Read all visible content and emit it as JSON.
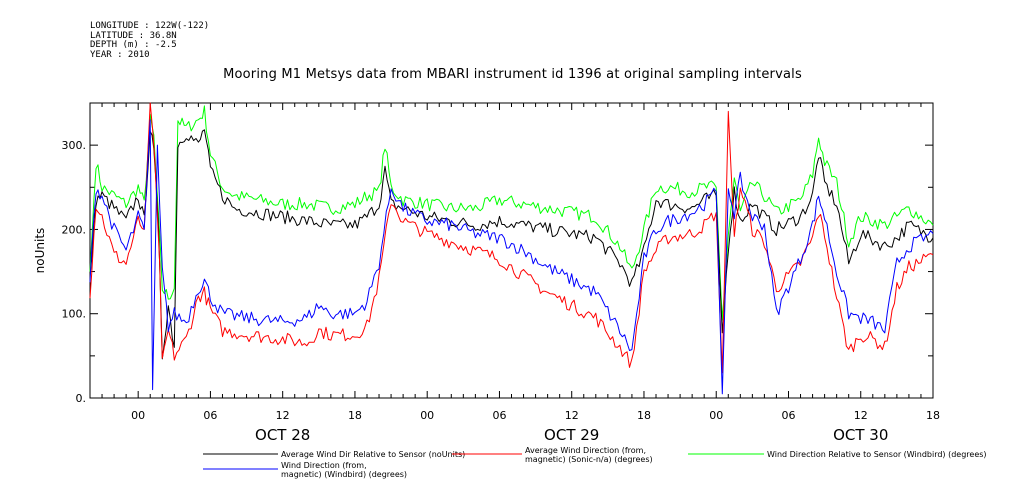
{
  "header": {
    "meta_lines": [
      "LONGITUDE : 122W(-122)",
      "LATITUDE : 36.8N",
      "DEPTH (m) : -2.5",
      "YEAR : 2010"
    ]
  },
  "chart_data": {
    "type": "line",
    "title": "Mooring M1 Metsys data from MBARI instrument id 1396 at original sampling intervals",
    "ylabel": "noUnits",
    "xlabel": "",
    "x_range_hours": [
      -4,
      66
    ],
    "ylim": [
      0,
      350
    ],
    "y_ticks": [
      0,
      100,
      200,
      300
    ],
    "y_tick_labels": [
      "0.",
      "100.",
      "200.",
      "300."
    ],
    "x_tick_labels": [
      "00",
      "06",
      "12",
      "18",
      "00",
      "06",
      "12",
      "18",
      "00",
      "06",
      "12",
      "18"
    ],
    "x_tick_hours": [
      0,
      6,
      12,
      18,
      24,
      30,
      36,
      42,
      48,
      54,
      60,
      66
    ],
    "day_labels": [
      {
        "label": "OCT 28",
        "hour": 12
      },
      {
        "label": "OCT 29",
        "hour": 36
      },
      {
        "label": "OCT 30",
        "hour": 60
      }
    ],
    "grid": false,
    "legend_position": "bottom",
    "series": [
      {
        "name": "Average Wind Dir Relative to Sensor (noUnits)",
        "color": "#000000",
        "points": [
          [
            -4,
            140
          ],
          [
            -3.5,
            235
          ],
          [
            -3,
            240
          ],
          [
            -2,
            225
          ],
          [
            -1,
            210
          ],
          [
            0,
            240
          ],
          [
            0.5,
            210
          ],
          [
            1,
            320
          ],
          [
            1.3,
            290
          ],
          [
            1.7,
            200
          ],
          [
            2,
            50
          ],
          [
            2.5,
            110
          ],
          [
            3,
            60
          ],
          [
            3.3,
            300
          ],
          [
            4,
            315
          ],
          [
            5,
            300
          ],
          [
            5.5,
            320
          ],
          [
            6,
            270
          ],
          [
            7,
            240
          ],
          [
            8,
            225
          ],
          [
            10,
            220
          ],
          [
            12,
            215
          ],
          [
            14,
            210
          ],
          [
            16,
            205
          ],
          [
            18,
            205
          ],
          [
            19,
            215
          ],
          [
            20,
            230
          ],
          [
            20.5,
            270
          ],
          [
            21,
            230
          ],
          [
            22,
            225
          ],
          [
            24,
            215
          ],
          [
            26,
            210
          ],
          [
            28,
            205
          ],
          [
            30,
            210
          ],
          [
            32,
            205
          ],
          [
            34,
            200
          ],
          [
            36,
            195
          ],
          [
            38,
            190
          ],
          [
            40,
            160
          ],
          [
            41,
            135
          ],
          [
            42,
            175
          ],
          [
            43,
            235
          ],
          [
            44,
            230
          ],
          [
            46,
            225
          ],
          [
            47,
            235
          ],
          [
            48,
            240
          ],
          [
            48.5,
            75
          ],
          [
            49,
            180
          ],
          [
            49.5,
            245
          ],
          [
            50,
            210
          ],
          [
            51,
            230
          ],
          [
            52,
            215
          ],
          [
            53,
            200
          ],
          [
            55,
            215
          ],
          [
            56,
            240
          ],
          [
            56.5,
            290
          ],
          [
            57,
            255
          ],
          [
            58,
            230
          ],
          [
            59,
            160
          ],
          [
            60,
            195
          ],
          [
            62,
            180
          ],
          [
            63,
            190
          ],
          [
            64,
            205
          ],
          [
            66,
            190
          ]
        ]
      },
      {
        "name": "Average Wind Direction (from, magnetic) (Sonic-n/a) (degrees)",
        "color": "#ff0000",
        "points": [
          [
            -4,
            125
          ],
          [
            -3.5,
            230
          ],
          [
            -3,
            215
          ],
          [
            -2,
            170
          ],
          [
            -1,
            160
          ],
          [
            0,
            210
          ],
          [
            0.5,
            200
          ],
          [
            1,
            350
          ],
          [
            1.4,
            280
          ],
          [
            1.8,
            150
          ],
          [
            2,
            40
          ],
          [
            2.5,
            80
          ],
          [
            3,
            50
          ],
          [
            4,
            70
          ],
          [
            5,
            120
          ],
          [
            5.5,
            125
          ],
          [
            6,
            105
          ],
          [
            7,
            80
          ],
          [
            9,
            75
          ],
          [
            12,
            70
          ],
          [
            14,
            65
          ],
          [
            15,
            80
          ],
          [
            16,
            75
          ],
          [
            18,
            75
          ],
          [
            19,
            85
          ],
          [
            20,
            140
          ],
          [
            21,
            235
          ],
          [
            22,
            210
          ],
          [
            24,
            195
          ],
          [
            26,
            185
          ],
          [
            28,
            175
          ],
          [
            30,
            165
          ],
          [
            32,
            145
          ],
          [
            34,
            125
          ],
          [
            36,
            110
          ],
          [
            38,
            95
          ],
          [
            40,
            60
          ],
          [
            41,
            40
          ],
          [
            42,
            150
          ],
          [
            43,
            175
          ],
          [
            44,
            190
          ],
          [
            46,
            195
          ],
          [
            47,
            205
          ],
          [
            48,
            220
          ],
          [
            48.5,
            30
          ],
          [
            49,
            340
          ],
          [
            49.5,
            190
          ],
          [
            50,
            250
          ],
          [
            51,
            200
          ],
          [
            52,
            185
          ],
          [
            53,
            130
          ],
          [
            55,
            160
          ],
          [
            56,
            190
          ],
          [
            56.5,
            220
          ],
          [
            57,
            195
          ],
          [
            58,
            120
          ],
          [
            59,
            55
          ],
          [
            60,
            75
          ],
          [
            61,
            70
          ],
          [
            62,
            60
          ],
          [
            63,
            130
          ],
          [
            64,
            155
          ],
          [
            66,
            170
          ]
        ]
      },
      {
        "name": "Wind Direction Relative to Sensor (Windbird) (degrees)",
        "color": "#00ff00",
        "points": [
          [
            -4,
            150
          ],
          [
            -3.5,
            280
          ],
          [
            -3,
            250
          ],
          [
            -2,
            240
          ],
          [
            -1,
            230
          ],
          [
            0,
            250
          ],
          [
            0.5,
            230
          ],
          [
            1,
            330
          ],
          [
            1.3,
            310
          ],
          [
            1.7,
            210
          ],
          [
            2,
            130
          ],
          [
            2.5,
            120
          ],
          [
            3,
            130
          ],
          [
            3.3,
            330
          ],
          [
            4,
            320
          ],
          [
            5,
            330
          ],
          [
            5.5,
            340
          ],
          [
            6,
            290
          ],
          [
            7,
            250
          ],
          [
            8,
            240
          ],
          [
            10,
            235
          ],
          [
            12,
            230
          ],
          [
            14,
            230
          ],
          [
            16,
            225
          ],
          [
            18,
            230
          ],
          [
            19,
            240
          ],
          [
            20,
            245
          ],
          [
            20.5,
            300
          ],
          [
            21,
            250
          ],
          [
            22,
            235
          ],
          [
            24,
            230
          ],
          [
            26,
            225
          ],
          [
            28,
            225
          ],
          [
            30,
            235
          ],
          [
            32,
            230
          ],
          [
            34,
            225
          ],
          [
            36,
            220
          ],
          [
            38,
            215
          ],
          [
            40,
            180
          ],
          [
            41,
            150
          ],
          [
            42,
            200
          ],
          [
            43,
            250
          ],
          [
            44,
            250
          ],
          [
            46,
            245
          ],
          [
            47,
            250
          ],
          [
            48,
            250
          ],
          [
            48.5,
            90
          ],
          [
            49,
            195
          ],
          [
            49.5,
            260
          ],
          [
            50,
            220
          ],
          [
            51,
            255
          ],
          [
            52,
            240
          ],
          [
            53,
            220
          ],
          [
            55,
            235
          ],
          [
            56,
            265
          ],
          [
            56.5,
            310
          ],
          [
            57,
            280
          ],
          [
            58,
            255
          ],
          [
            59,
            185
          ],
          [
            60,
            215
          ],
          [
            62,
            205
          ],
          [
            63,
            215
          ],
          [
            64,
            225
          ],
          [
            66,
            205
          ]
        ]
      },
      {
        "name": "Wind Direction (from, magnetic) (Windbird) (degrees)",
        "color": "#0000ff",
        "points": [
          [
            -4,
            140
          ],
          [
            -3.5,
            250
          ],
          [
            -3,
            240
          ],
          [
            -2,
            200
          ],
          [
            -1,
            175
          ],
          [
            0,
            215
          ],
          [
            0.5,
            200
          ],
          [
            1,
            330
          ],
          [
            1.2,
            10
          ],
          [
            1.6,
            300
          ],
          [
            2,
            150
          ],
          [
            2.5,
            85
          ],
          [
            3,
            100
          ],
          [
            4,
            90
          ],
          [
            5,
            130
          ],
          [
            5.5,
            140
          ],
          [
            6,
            120
          ],
          [
            7,
            100
          ],
          [
            9,
            95
          ],
          [
            12,
            90
          ],
          [
            14,
            95
          ],
          [
            15,
            110
          ],
          [
            16,
            100
          ],
          [
            18,
            100
          ],
          [
            19,
            115
          ],
          [
            20,
            160
          ],
          [
            21,
            250
          ],
          [
            22,
            225
          ],
          [
            24,
            210
          ],
          [
            26,
            205
          ],
          [
            28,
            195
          ],
          [
            30,
            190
          ],
          [
            32,
            175
          ],
          [
            34,
            155
          ],
          [
            36,
            140
          ],
          [
            38,
            125
          ],
          [
            40,
            80
          ],
          [
            41,
            55
          ],
          [
            42,
            165
          ],
          [
            43,
            200
          ],
          [
            44,
            210
          ],
          [
            46,
            220
          ],
          [
            47,
            230
          ],
          [
            48,
            245
          ],
          [
            48.5,
            5
          ],
          [
            49,
            250
          ],
          [
            49.5,
            220
          ],
          [
            50,
            260
          ],
          [
            51,
            215
          ],
          [
            52,
            205
          ],
          [
            53,
            100
          ],
          [
            55,
            165
          ],
          [
            56,
            205
          ],
          [
            56.5,
            240
          ],
          [
            57,
            215
          ],
          [
            58,
            150
          ],
          [
            59,
            100
          ],
          [
            60,
            95
          ],
          [
            61,
            90
          ],
          [
            62,
            80
          ],
          [
            63,
            160
          ],
          [
            64,
            180
          ],
          [
            66,
            195
          ]
        ]
      }
    ],
    "legend": [
      {
        "line1": "Average Wind Dir Relative to Sensor (noUnits)",
        "line2": ""
      },
      {
        "line1": "Average Wind Direction (from,",
        "line2": "magnetic) (Sonic-n/a) (degrees)"
      },
      {
        "line1": "Wind Direction Relative to Sensor (Windbird) (degrees)",
        "line2": ""
      },
      {
        "line1": "Wind Direction (from,",
        "line2": "magnetic) (Windbird) (degrees)"
      }
    ]
  }
}
